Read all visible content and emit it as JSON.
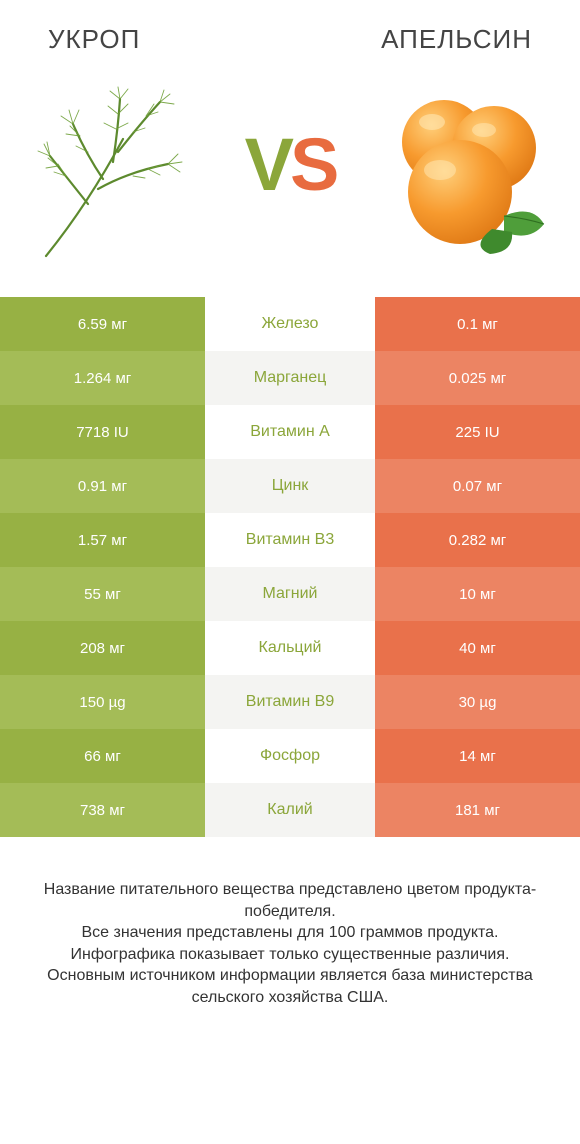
{
  "header": {
    "left_title": "УКРОП",
    "right_title": "АПЕЛЬСИН"
  },
  "vs": {
    "v": "V",
    "s": "S"
  },
  "colors": {
    "left_a": "#97b144",
    "left_b": "#a4bc57",
    "right_a": "#e9714b",
    "right_b": "#ec8463",
    "mid_a": "#ffffff",
    "mid_b": "#f4f4f2",
    "mid_text_left": "#8ba63a",
    "mid_text_right": "#e86b3f"
  },
  "rows": [
    {
      "label": "Железо",
      "left": "6.59 мг",
      "right": "0.1 мг",
      "winner": "left"
    },
    {
      "label": "Марганец",
      "left": "1.264 мг",
      "right": "0.025 мг",
      "winner": "left"
    },
    {
      "label": "Витамин A",
      "left": "7718 IU",
      "right": "225 IU",
      "winner": "left"
    },
    {
      "label": "Цинк",
      "left": "0.91 мг",
      "right": "0.07 мг",
      "winner": "left"
    },
    {
      "label": "Витамин B3",
      "left": "1.57 мг",
      "right": "0.282 мг",
      "winner": "left"
    },
    {
      "label": "Магний",
      "left": "55 мг",
      "right": "10 мг",
      "winner": "left"
    },
    {
      "label": "Кальций",
      "left": "208 мг",
      "right": "40 мг",
      "winner": "left"
    },
    {
      "label": "Витамин B9",
      "left": "150 µg",
      "right": "30 µg",
      "winner": "left"
    },
    {
      "label": "Фосфор",
      "left": "66 мг",
      "right": "14 мг",
      "winner": "left"
    },
    {
      "label": "Калий",
      "left": "738 мг",
      "right": "181 мг",
      "winner": "left"
    }
  ],
  "footer": {
    "l1": "Название питательного вещества представлено цветом продукта-победителя.",
    "l2": "Все значения представлены для 100 граммов продукта.",
    "l3": "Инфографика показывает только существенные различия.",
    "l4": "Основным источником информации является база министерства сельского хозяйства США."
  }
}
